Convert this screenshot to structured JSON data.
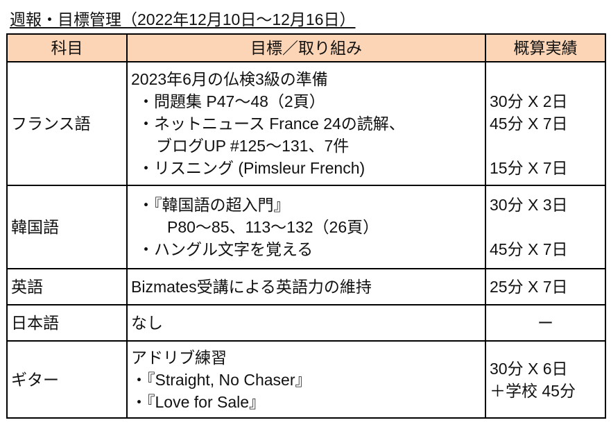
{
  "title": "週報・目標管理（2022年12月10日〜12月16日）",
  "headers": {
    "subject": "科目",
    "goal": "目標／取り組み",
    "actual": "概算実績"
  },
  "rows": [
    {
      "subject": "フランス語",
      "goals": [
        "2023年6月の仏検3級の準備",
        "・問題集 P47〜48（2頁）",
        "・ネットニュース France 24の読解、",
        "ブログUP #125〜131、7件",
        "・リスニング (Pimsleur French)"
      ],
      "actuals": [
        "30分 X 2日",
        "45分 X 7日",
        "15分 X 7日"
      ]
    },
    {
      "subject": "韓国語",
      "goals": [
        "・『韓国語の超入門』",
        "P80〜85、113〜132（26頁）",
        "・ハングル文字を覚える"
      ],
      "actuals": [
        "30分 X 3日",
        "45分 X 7日"
      ]
    },
    {
      "subject": "英語",
      "goals": [
        "Bizmates受講による英語力の維持"
      ],
      "actuals": [
        "25分 X 7日"
      ]
    },
    {
      "subject": "日本語",
      "goals": [
        "なし"
      ],
      "actuals": [
        "ー"
      ]
    },
    {
      "subject": "ギター",
      "goals": [
        "アドリブ練習",
        "・『Straight, No Chaser』",
        "・『Love for Sale』"
      ],
      "actuals": [
        "30分 X 6日",
        "＋学校 45分"
      ]
    }
  ],
  "colors": {
    "header_bg": "#fbd5b5",
    "border": "#000000"
  }
}
